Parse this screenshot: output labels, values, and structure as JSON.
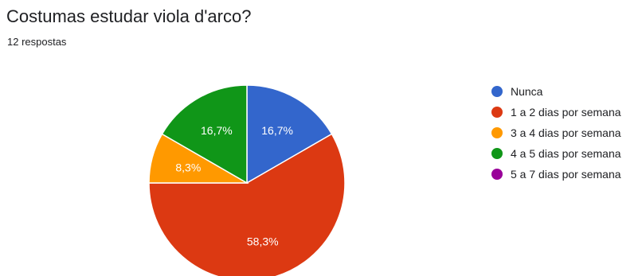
{
  "title": "Costumas estudar viola d'arco?",
  "subtitle": "12 respostas",
  "chart_data": {
    "type": "pie",
    "title": "Costumas estudar viola d'arco?",
    "categories": [
      "Nunca",
      "1 a 2 dias por semana",
      "3 a 4 dias por semana",
      "4 a 5 dias por semana",
      "5 a 7 dias por semana"
    ],
    "values": [
      2,
      7,
      1,
      2,
      0
    ],
    "slice_labels": [
      "16,7%",
      "58,3%",
      "8,3%",
      "16,7%",
      ""
    ],
    "colors": [
      "#3366cc",
      "#dc3912",
      "#ff9900",
      "#109618",
      "#990099"
    ],
    "legend_position": "right"
  }
}
